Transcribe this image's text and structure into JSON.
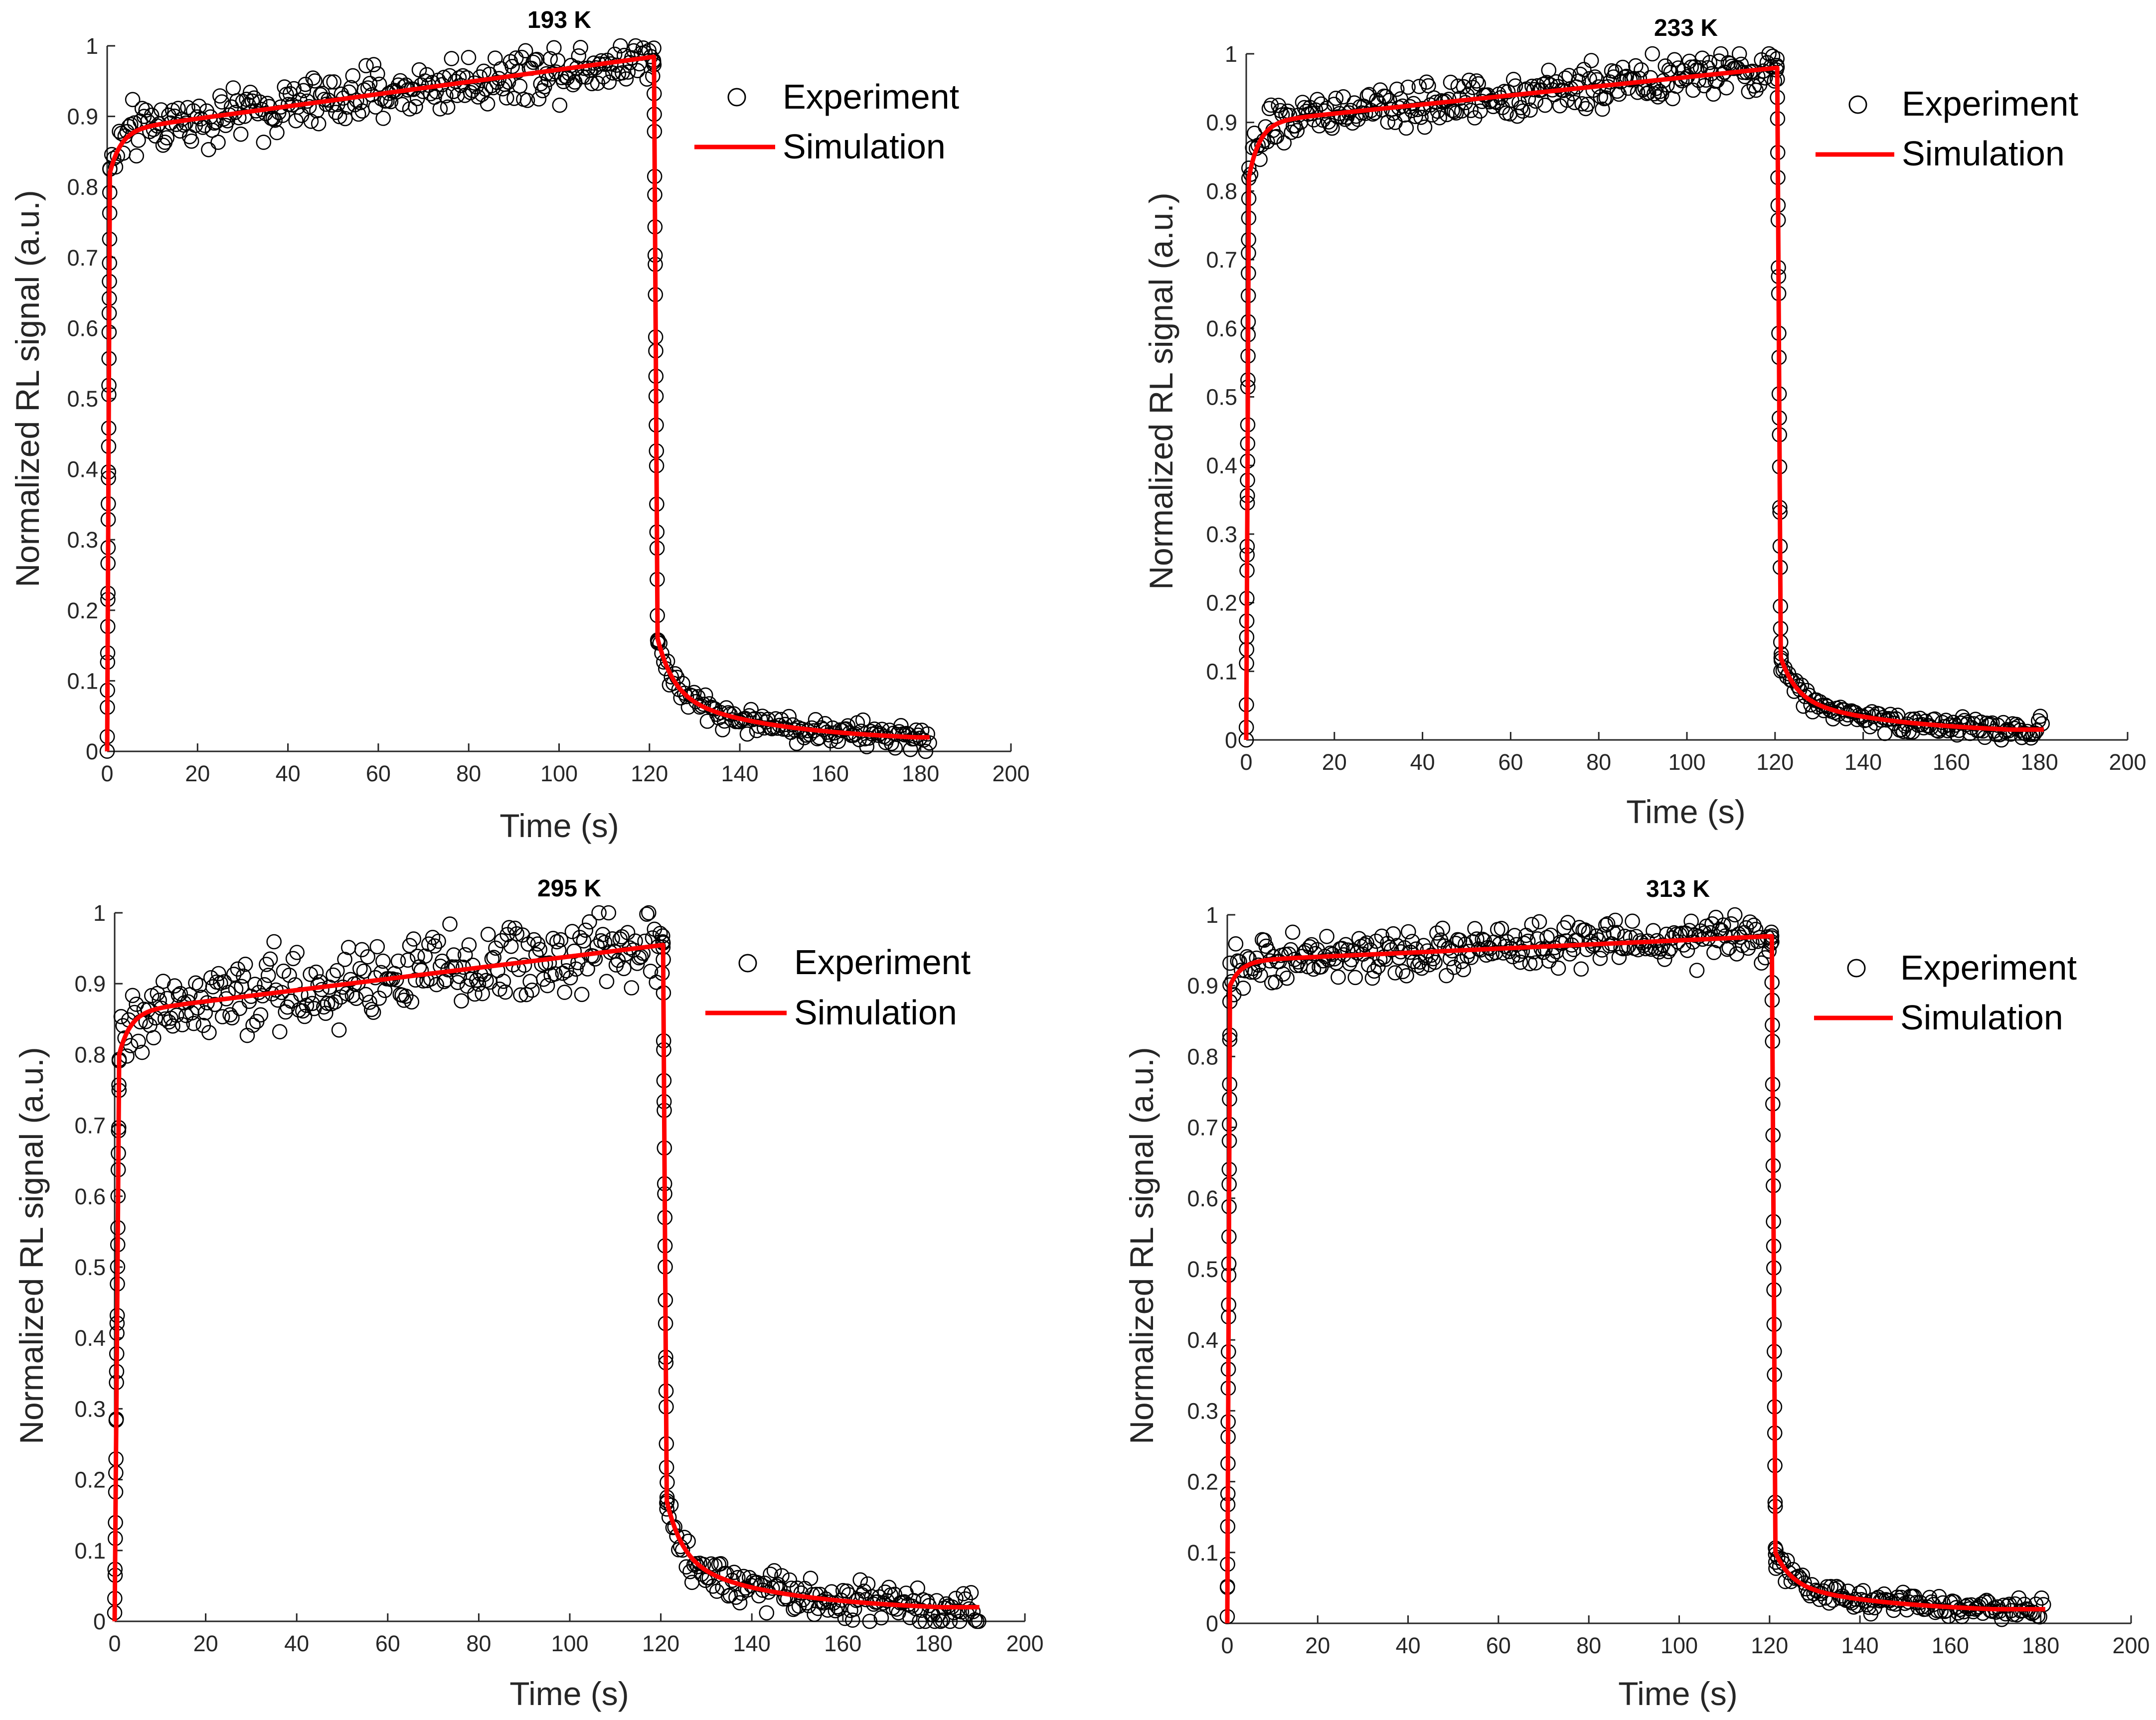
{
  "figure": {
    "colors": {
      "experiment": "#000000",
      "simulation": "#ff0000",
      "axis": "#262626",
      "background": "#ffffff"
    }
  },
  "chart_data": [
    {
      "type": "scatter",
      "title": "193 K",
      "xlabel": "Time (s)",
      "ylabel": "Normalized RL signal (a.u.)",
      "xlim": [
        0,
        200
      ],
      "ylim": [
        0,
        1
      ],
      "xticks": [
        "0",
        "20",
        "40",
        "60",
        "80",
        "100",
        "120",
        "140",
        "160",
        "180",
        "200"
      ],
      "yticks": [
        "0",
        "0.1",
        "0.2",
        "0.3",
        "0.4",
        "0.5",
        "0.6",
        "0.7",
        "0.8",
        "0.9",
        "1"
      ],
      "legend": {
        "position": "top-right",
        "entries": [
          "Experiment",
          "Simulation"
        ]
      },
      "model": {
        "t_on": 0.6,
        "t_off": 121.5,
        "t_end": 182,
        "start": 0.82,
        "knee": 0.88,
        "peak": 0.985,
        "tail_start": 0.16,
        "tail_end": 0.02,
        "noise": 0.018
      },
      "series": [
        {
          "name": "Experiment",
          "marker": "circle",
          "x": [
            0,
            0.6,
            2,
            5,
            10,
            20,
            40,
            60,
            80,
            100,
            120,
            121,
            122,
            125,
            130,
            140,
            160,
            182
          ],
          "y": [
            0,
            0.82,
            0.86,
            0.88,
            0.91,
            0.93,
            0.95,
            0.96,
            0.97,
            0.975,
            0.985,
            0.6,
            0.16,
            0.09,
            0.06,
            0.04,
            0.03,
            0.02
          ]
        },
        {
          "name": "Simulation",
          "marker": "line",
          "x": [
            0,
            0.6,
            2,
            5,
            10,
            20,
            40,
            60,
            80,
            100,
            121.5,
            122,
            125,
            130,
            140,
            160,
            182
          ],
          "y": [
            0,
            0.82,
            0.86,
            0.88,
            0.91,
            0.93,
            0.95,
            0.96,
            0.97,
            0.975,
            0.985,
            0.16,
            0.09,
            0.06,
            0.04,
            0.03,
            0.02
          ]
        }
      ]
    },
    {
      "type": "scatter",
      "title": "233 K",
      "xlabel": "Time (s)",
      "ylabel": "Normalized RL signal (a.u.)",
      "xlim": [
        0,
        200
      ],
      "ylim": [
        0,
        1
      ],
      "xticks": [
        "0",
        "20",
        "40",
        "60",
        "80",
        "100",
        "120",
        "140",
        "160",
        "180",
        "200"
      ],
      "yticks": [
        "0",
        "0.1",
        "0.2",
        "0.3",
        "0.4",
        "0.5",
        "0.6",
        "0.7",
        "0.8",
        "0.9",
        "1"
      ],
      "legend": {
        "position": "top-right",
        "entries": [
          "Experiment",
          "Simulation"
        ]
      },
      "model": {
        "t_on": 0.6,
        "t_off": 121,
        "t_end": 181,
        "start": 0.82,
        "knee": 0.9,
        "peak": 0.98,
        "tail_start": 0.12,
        "tail_end": 0.015,
        "noise": 0.015
      },
      "series": [
        {
          "name": "Experiment",
          "marker": "circle",
          "x": [
            0,
            0.6,
            2,
            5,
            10,
            20,
            40,
            60,
            80,
            100,
            120,
            121,
            122,
            125,
            130,
            140,
            160,
            181
          ],
          "y": [
            0,
            0.82,
            0.88,
            0.9,
            0.92,
            0.94,
            0.955,
            0.965,
            0.97,
            0.975,
            0.98,
            0.5,
            0.12,
            0.07,
            0.045,
            0.03,
            0.02,
            0.015
          ]
        },
        {
          "name": "Simulation",
          "marker": "line",
          "x": [
            0,
            0.6,
            2,
            5,
            10,
            20,
            40,
            60,
            80,
            100,
            121,
            122,
            125,
            130,
            140,
            160,
            181
          ],
          "y": [
            0,
            0.82,
            0.88,
            0.9,
            0.92,
            0.94,
            0.955,
            0.965,
            0.97,
            0.975,
            0.98,
            0.12,
            0.07,
            0.045,
            0.03,
            0.02,
            0.015
          ]
        }
      ]
    },
    {
      "type": "scatter",
      "title": "295 K",
      "xlabel": "Time (s)",
      "ylabel": "Normalized RL signal (a.u.)",
      "xlim": [
        0,
        200
      ],
      "ylim": [
        0,
        1
      ],
      "xticks": [
        "0",
        "20",
        "40",
        "60",
        "80",
        "100",
        "120",
        "140",
        "160",
        "180",
        "200"
      ],
      "yticks": [
        "0",
        "0.1",
        "0.2",
        "0.3",
        "0.4",
        "0.5",
        "0.6",
        "0.7",
        "0.8",
        "0.9",
        "1"
      ],
      "legend": {
        "position": "top-right",
        "entries": [
          "Experiment",
          "Simulation"
        ]
      },
      "model": {
        "t_on": 1,
        "t_off": 121,
        "t_end": 190,
        "start": 0.8,
        "knee": 0.86,
        "peak": 0.955,
        "tail_start": 0.17,
        "tail_end": 0.02,
        "noise": 0.03
      },
      "series": [
        {
          "name": "Experiment",
          "marker": "circle",
          "x": [
            0,
            1,
            3,
            5,
            10,
            20,
            40,
            60,
            80,
            100,
            120,
            121,
            122,
            125,
            130,
            140,
            160,
            190
          ],
          "y": [
            0,
            0.8,
            0.85,
            0.87,
            0.89,
            0.905,
            0.925,
            0.935,
            0.945,
            0.95,
            0.955,
            0.5,
            0.17,
            0.09,
            0.06,
            0.045,
            0.035,
            0.02
          ]
        },
        {
          "name": "Simulation",
          "marker": "line",
          "x": [
            0,
            1,
            3,
            5,
            10,
            20,
            40,
            60,
            80,
            100,
            121,
            122,
            125,
            130,
            140,
            160,
            190
          ],
          "y": [
            0,
            0.8,
            0.85,
            0.87,
            0.89,
            0.905,
            0.925,
            0.935,
            0.945,
            0.95,
            0.955,
            0.17,
            0.09,
            0.06,
            0.045,
            0.035,
            0.02
          ]
        }
      ]
    },
    {
      "type": "scatter",
      "title": "313 K",
      "xlabel": "Time (s)",
      "ylabel": "Normalized RL signal (a.u.)",
      "xlim": [
        0,
        200
      ],
      "ylim": [
        0,
        1
      ],
      "xticks": [
        "0",
        "20",
        "40",
        "60",
        "80",
        "100",
        "120",
        "140",
        "160",
        "180",
        "200"
      ],
      "yticks": [
        "0",
        "0.1",
        "0.2",
        "0.3",
        "0.4",
        "0.5",
        "0.6",
        "0.7",
        "0.8",
        "0.9",
        "1"
      ],
      "legend": {
        "position": "top-right",
        "entries": [
          "Experiment",
          "Simulation"
        ]
      },
      "model": {
        "t_on": 0.6,
        "t_off": 121,
        "t_end": 181,
        "start": 0.9,
        "knee": 0.935,
        "peak": 0.97,
        "tail_start": 0.1,
        "tail_end": 0.02,
        "noise": 0.015
      },
      "series": [
        {
          "name": "Experiment",
          "marker": "circle",
          "x": [
            0,
            0.6,
            2,
            5,
            10,
            20,
            40,
            60,
            80,
            100,
            120,
            121,
            122,
            125,
            130,
            140,
            160,
            181
          ],
          "y": [
            0,
            0.9,
            0.925,
            0.935,
            0.945,
            0.955,
            0.96,
            0.965,
            0.967,
            0.968,
            0.97,
            0.5,
            0.1,
            0.05,
            0.03,
            0.025,
            0.02,
            0.02
          ]
        },
        {
          "name": "Simulation",
          "marker": "line",
          "x": [
            0,
            0.6,
            2,
            5,
            10,
            20,
            40,
            60,
            80,
            100,
            121,
            122,
            125,
            130,
            140,
            160,
            181
          ],
          "y": [
            0,
            0.9,
            0.925,
            0.935,
            0.945,
            0.955,
            0.96,
            0.965,
            0.967,
            0.968,
            0.97,
            0.1,
            0.05,
            0.03,
            0.025,
            0.02,
            0.02
          ]
        }
      ]
    }
  ]
}
